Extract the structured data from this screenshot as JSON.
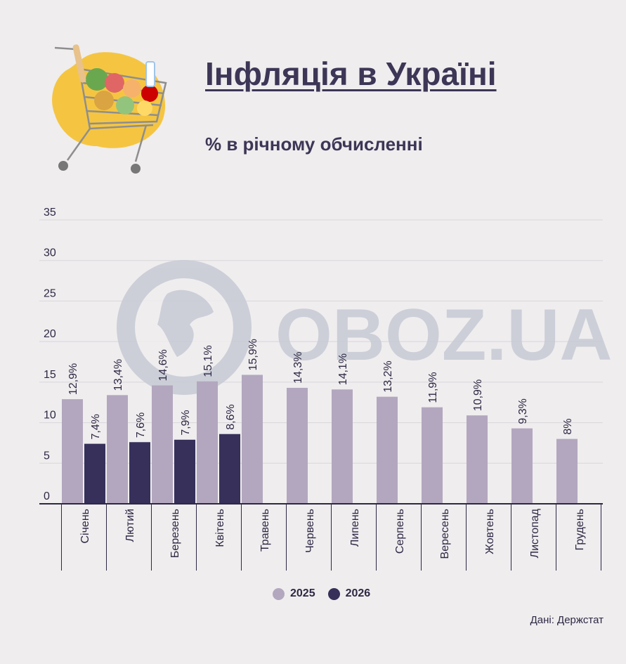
{
  "header": {
    "title": "Інфляція в Україні",
    "subtitle": "% в річному обчисленні"
  },
  "watermark": {
    "text": "OBOZ.UA"
  },
  "source": "Дані: Держстат",
  "colors": {
    "series_2025": "#b3a7bf",
    "series_2026": "#36305a",
    "grid": "#d9d6da",
    "axis": "#2e2844"
  },
  "chart_data": {
    "type": "bar",
    "title": "Інфляція в Україні",
    "subtitle": "% в річному обчисленні",
    "categories": [
      "Січень",
      "Лютий",
      "Березень",
      "Квітень",
      "Травень",
      "Червень",
      "Липень",
      "Серпень",
      "Вересень",
      "Жовтень",
      "Листопад",
      "Грудень"
    ],
    "series": [
      {
        "name": "2025",
        "values": [
          12.9,
          13.4,
          14.6,
          15.1,
          15.9,
          14.3,
          14.1,
          13.2,
          11.9,
          10.9,
          9.3,
          8
        ],
        "labels": [
          "12,9%",
          "13,4%",
          "14,6%",
          "15,1%",
          "15,9%",
          "14,3%",
          "14,1%",
          "13,2%",
          "11,9%",
          "10,9%",
          "9,3%",
          "8%"
        ]
      },
      {
        "name": "2026",
        "values": [
          7.4,
          7.6,
          7.9,
          8.6,
          null,
          null,
          null,
          null,
          null,
          null,
          null,
          null
        ],
        "labels": [
          "7,4%",
          "7,6%",
          "7,9%",
          "8,6%",
          "",
          "",
          "",
          "",
          "",
          "",
          "",
          ""
        ]
      }
    ],
    "ylim": [
      0,
      35
    ],
    "yticks": [
      0,
      5,
      10,
      15,
      20,
      25,
      30,
      35
    ],
    "grid": true,
    "legend": "bottom-center"
  }
}
